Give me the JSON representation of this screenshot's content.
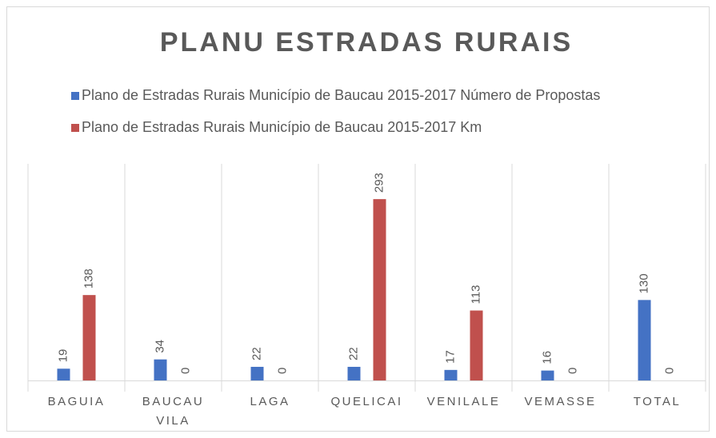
{
  "chart_data": {
    "type": "bar",
    "title": "PLANU ESTRADAS RURAIS",
    "categories": [
      "BAGUIA",
      "BAUCAU VILA",
      "LAGA",
      "QUELICAI",
      "VENILALE",
      "VEMASSE",
      "TOTAL"
    ],
    "series": [
      {
        "name": "Plano de Estradas Rurais Município de Baucau 2015-2017 Número de Propostas",
        "color": "#4472c4",
        "values": [
          19,
          34,
          22,
          22,
          17,
          16,
          130
        ]
      },
      {
        "name": "Plano de Estradas Rurais Município de Baucau 2015-2017 Km",
        "color": "#c0504d",
        "values": [
          138,
          0,
          0,
          293,
          113,
          0,
          0
        ]
      }
    ],
    "ylim": [
      0,
      350
    ]
  }
}
